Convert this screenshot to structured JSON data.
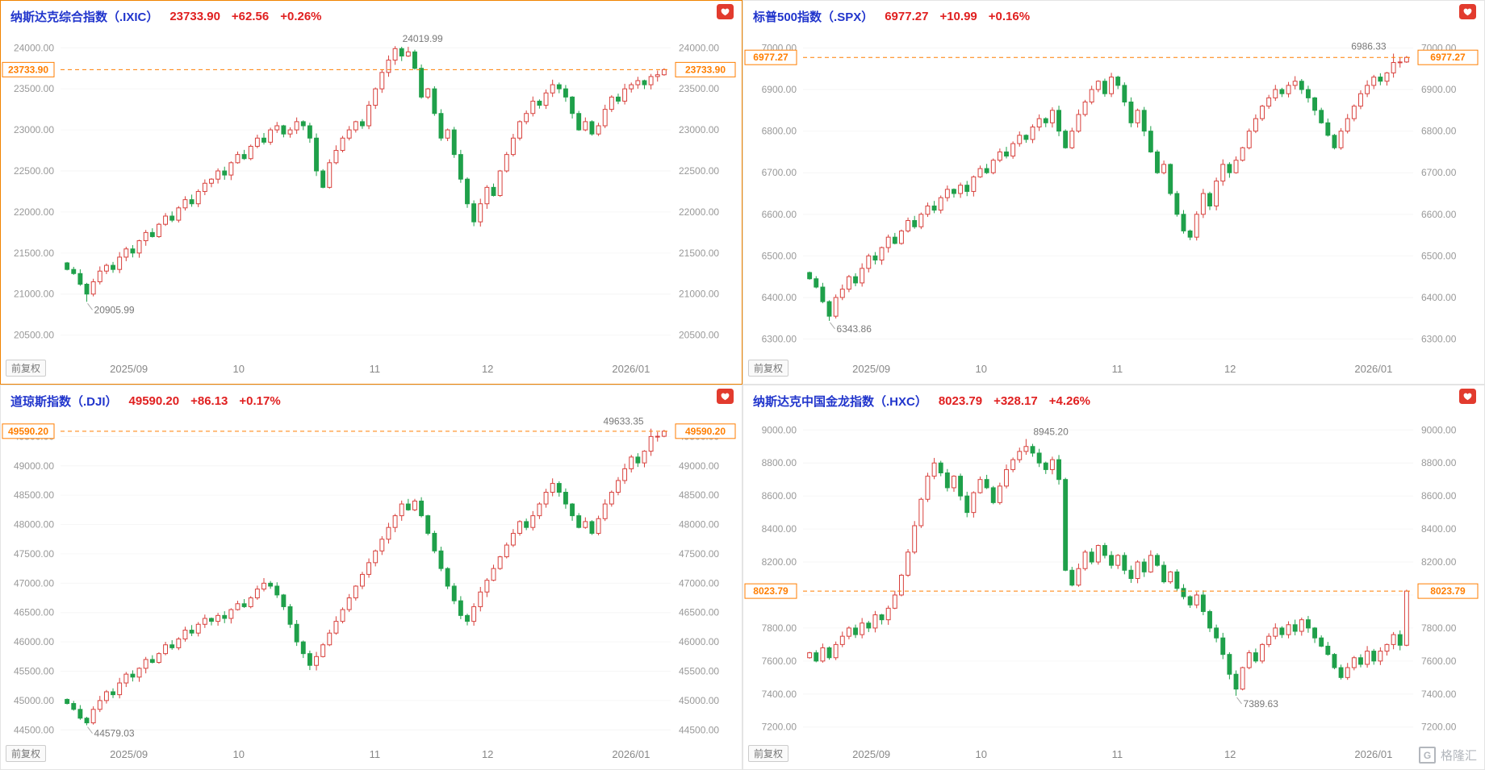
{
  "colors": {
    "up": "#d8403c",
    "down": "#1fa04a",
    "current": "#ff7e00",
    "title": "#2135cc",
    "value": "#e02020",
    "badge": "#e23b2e",
    "active_border": "#f08300"
  },
  "watermark": {
    "logo_letter": "G",
    "text": "格隆汇"
  },
  "chart_data": [
    {
      "type": "candlestick",
      "title": "纳斯达克综合指数（.IXIC）",
      "last_price": "23733.90",
      "change": "+62.56",
      "change_pct": "+0.26%",
      "adjust_label": "前复权",
      "current_price": 23733.9,
      "y_ticks": [
        24000,
        23500,
        23000,
        22500,
        22000,
        21500,
        21000,
        20500
      ],
      "y_min": 20300,
      "y_max": 24150,
      "x_ticks": [
        {
          "label": "2025/09",
          "pos": 0.112
        },
        {
          "label": "10",
          "pos": 0.292
        },
        {
          "label": "11",
          "pos": 0.515
        },
        {
          "label": "12",
          "pos": 0.7
        },
        {
          "label": "2026/01",
          "pos": 0.935
        }
      ],
      "first_open": 21380,
      "closes": [
        21300,
        21250,
        21120,
        21000,
        21150,
        21280,
        21350,
        21300,
        21450,
        21550,
        21500,
        21650,
        21750,
        21700,
        21850,
        21950,
        21900,
        22050,
        22150,
        22100,
        22250,
        22350,
        22400,
        22500,
        22450,
        22600,
        22700,
        22650,
        22800,
        22900,
        22850,
        23000,
        23050,
        22950,
        23000,
        23100,
        23050,
        22900,
        22500,
        22300,
        22600,
        22750,
        22900,
        23000,
        23100,
        23050,
        23300,
        23500,
        23700,
        23850,
        23990,
        23900,
        23950,
        23750,
        23400,
        23500,
        23200,
        22900,
        23000,
        22700,
        22400,
        22100,
        21880,
        22100,
        22300,
        22200,
        22500,
        22700,
        22900,
        23100,
        23200,
        23350,
        23300,
        23450,
        23550,
        23500,
        23400,
        23200,
        23000,
        23100,
        22950,
        23050,
        23250,
        23400,
        23350,
        23500,
        23550,
        23600,
        23550,
        23650,
        23671.34,
        23733.9
      ],
      "high_annotation": {
        "index": 50,
        "value": 24019.99,
        "side": "right"
      },
      "low_annotation": {
        "index": 3,
        "value": 20905.99,
        "side": "right"
      }
    },
    {
      "type": "candlestick",
      "title": "标普500指数（.SPX）",
      "last_price": "6977.27",
      "change": "+10.99",
      "change_pct": "+0.16%",
      "adjust_label": "前复权",
      "current_price": 6977.27,
      "y_ticks": [
        7000,
        6900,
        6800,
        6700,
        6600,
        6500,
        6400,
        6300
      ],
      "y_min": 6270,
      "y_max": 7030,
      "x_ticks": [
        {
          "label": "2025/09",
          "pos": 0.112
        },
        {
          "label": "10",
          "pos": 0.292
        },
        {
          "label": "11",
          "pos": 0.515
        },
        {
          "label": "12",
          "pos": 0.7
        },
        {
          "label": "2026/01",
          "pos": 0.935
        }
      ],
      "first_open": 6460,
      "closes": [
        6445,
        6425,
        6390,
        6355,
        6400,
        6420,
        6450,
        6435,
        6470,
        6500,
        6490,
        6520,
        6545,
        6530,
        6560,
        6585,
        6570,
        6600,
        6620,
        6610,
        6640,
        6660,
        6650,
        6670,
        6655,
        6690,
        6710,
        6700,
        6730,
        6750,
        6740,
        6770,
        6790,
        6780,
        6810,
        6830,
        6820,
        6850,
        6800,
        6760,
        6800,
        6840,
        6870,
        6900,
        6920,
        6890,
        6930,
        6910,
        6870,
        6820,
        6850,
        6800,
        6750,
        6700,
        6720,
        6650,
        6600,
        6560,
        6545,
        6600,
        6650,
        6620,
        6680,
        6720,
        6700,
        6730,
        6760,
        6800,
        6830,
        6860,
        6880,
        6900,
        6890,
        6910,
        6920,
        6900,
        6880,
        6850,
        6820,
        6790,
        6760,
        6800,
        6830,
        6860,
        6890,
        6910,
        6930,
        6920,
        6940,
        6965,
        6966.28,
        6977.27
      ],
      "high_annotation": {
        "index": 89,
        "value": 6986.33,
        "side": "left"
      },
      "low_annotation": {
        "index": 3,
        "value": 6343.86,
        "side": "right"
      }
    },
    {
      "type": "candlestick",
      "title": "道琼斯指数（.DJI）",
      "last_price": "49590.20",
      "change": "+86.13",
      "change_pct": "+0.17%",
      "adjust_label": "前复权",
      "current_price": 49590.2,
      "y_ticks": [
        49500,
        49000,
        48500,
        48000,
        47500,
        47000,
        46500,
        46000,
        45500,
        45000,
        44500
      ],
      "y_min": 44380,
      "y_max": 49780,
      "x_ticks": [
        {
          "label": "2025/09",
          "pos": 0.112
        },
        {
          "label": "10",
          "pos": 0.292
        },
        {
          "label": "11",
          "pos": 0.515
        },
        {
          "label": "12",
          "pos": 0.7
        },
        {
          "label": "2026/01",
          "pos": 0.935
        }
      ],
      "first_open": 45020,
      "closes": [
        44950,
        44850,
        44700,
        44620,
        44850,
        45000,
        45150,
        45100,
        45300,
        45450,
        45400,
        45550,
        45700,
        45650,
        45800,
        45950,
        45900,
        46050,
        46200,
        46150,
        46300,
        46400,
        46350,
        46450,
        46400,
        46550,
        46650,
        46600,
        46750,
        46900,
        47000,
        46950,
        46800,
        46600,
        46300,
        46000,
        45800,
        45600,
        45750,
        45950,
        46150,
        46350,
        46550,
        46750,
        46950,
        47150,
        47350,
        47550,
        47750,
        47950,
        48150,
        48350,
        48250,
        48400,
        48150,
        47850,
        47550,
        47250,
        46950,
        46700,
        46450,
        46350,
        46600,
        46850,
        47050,
        47250,
        47450,
        47650,
        47850,
        48050,
        47950,
        48150,
        48350,
        48550,
        48700,
        48550,
        48350,
        48150,
        47950,
        48050,
        47850,
        48100,
        48350,
        48550,
        48750,
        48950,
        49150,
        49050,
        49250,
        49500,
        49504.07,
        49590.2
      ],
      "high_annotation": {
        "index": 89,
        "value": 49633.35,
        "side": "left"
      },
      "low_annotation": {
        "index": 3,
        "value": 44579.03,
        "side": "right"
      }
    },
    {
      "type": "candlestick",
      "title": "纳斯达克中国金龙指数（.HXC）",
      "last_price": "8023.79",
      "change": "+328.17",
      "change_pct": "+4.26%",
      "adjust_label": "前复权",
      "current_price": 8023.79,
      "y_ticks": [
        9000,
        8800,
        8600,
        8400,
        8200,
        8000,
        7800,
        7600,
        7400,
        7200
      ],
      "y_min": 7140,
      "y_max": 9060,
      "x_ticks": [
        {
          "label": "2025/09",
          "pos": 0.112
        },
        {
          "label": "10",
          "pos": 0.292
        },
        {
          "label": "11",
          "pos": 0.515
        },
        {
          "label": "12",
          "pos": 0.7
        },
        {
          "label": "2026/01",
          "pos": 0.935
        }
      ],
      "first_open": 7620,
      "closes": [
        7650,
        7600,
        7680,
        7620,
        7700,
        7750,
        7800,
        7760,
        7830,
        7800,
        7880,
        7850,
        7920,
        8000,
        8120,
        8260,
        8420,
        8580,
        8720,
        8800,
        8740,
        8650,
        8720,
        8600,
        8500,
        8620,
        8700,
        8650,
        8560,
        8660,
        8760,
        8820,
        8870,
        8900,
        8860,
        8800,
        8760,
        8820,
        8700,
        8150,
        8060,
        8160,
        8260,
        8200,
        8300,
        8240,
        8180,
        8240,
        8150,
        8100,
        8200,
        8140,
        8240,
        8180,
        8080,
        8140,
        8040,
        7990,
        7940,
        8000,
        7900,
        7800,
        7740,
        7640,
        7520,
        7430,
        7560,
        7650,
        7600,
        7700,
        7750,
        7800,
        7760,
        7820,
        7780,
        7850,
        7800,
        7740,
        7690,
        7640,
        7560,
        7500,
        7560,
        7620,
        7580,
        7660,
        7600,
        7660,
        7700,
        7760,
        7695.62,
        8023.79
      ],
      "high_annotation": {
        "index": 33,
        "value": 8945.2,
        "side": "right"
      },
      "low_annotation": {
        "index": 65,
        "value": 7389.63,
        "side": "right"
      }
    }
  ]
}
